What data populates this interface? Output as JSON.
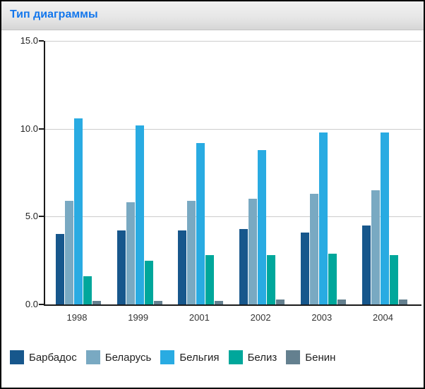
{
  "header": {
    "title": "Тип диаграммы",
    "title_color": "#1276ec"
  },
  "chart_data": {
    "type": "bar",
    "title": "",
    "xlabel": "",
    "ylabel": "",
    "categories": [
      "1998",
      "1999",
      "2001",
      "2002",
      "2003",
      "2004"
    ],
    "series": [
      {
        "name": "Барбадос",
        "color": "#17578c",
        "values": [
          4.0,
          4.2,
          4.2,
          4.3,
          4.1,
          4.5
        ]
      },
      {
        "name": "Беларусь",
        "color": "#79a9c2",
        "values": [
          5.9,
          5.8,
          5.9,
          6.0,
          6.3,
          6.5
        ]
      },
      {
        "name": "Бельгия",
        "color": "#29abe2",
        "values": [
          10.6,
          10.2,
          9.2,
          8.8,
          9.8,
          9.8
        ]
      },
      {
        "name": "Белиз",
        "color": "#00a79b",
        "values": [
          1.6,
          2.5,
          2.8,
          2.8,
          2.9,
          2.8
        ]
      },
      {
        "name": "Бенин",
        "color": "#64808f",
        "values": [
          0.2,
          0.2,
          0.2,
          0.3,
          0.3,
          0.3
        ]
      }
    ],
    "ylim": [
      0,
      15
    ],
    "y_ticks": [
      15.0,
      10.0,
      5.0,
      0.0
    ],
    "y_tick_labels": [
      "15.0",
      "10.0",
      "5.0",
      "0.0"
    ],
    "grid": true,
    "axis_color": "#1a1a1a",
    "gridline_color": "#cccccc",
    "legend_position": "bottom"
  }
}
